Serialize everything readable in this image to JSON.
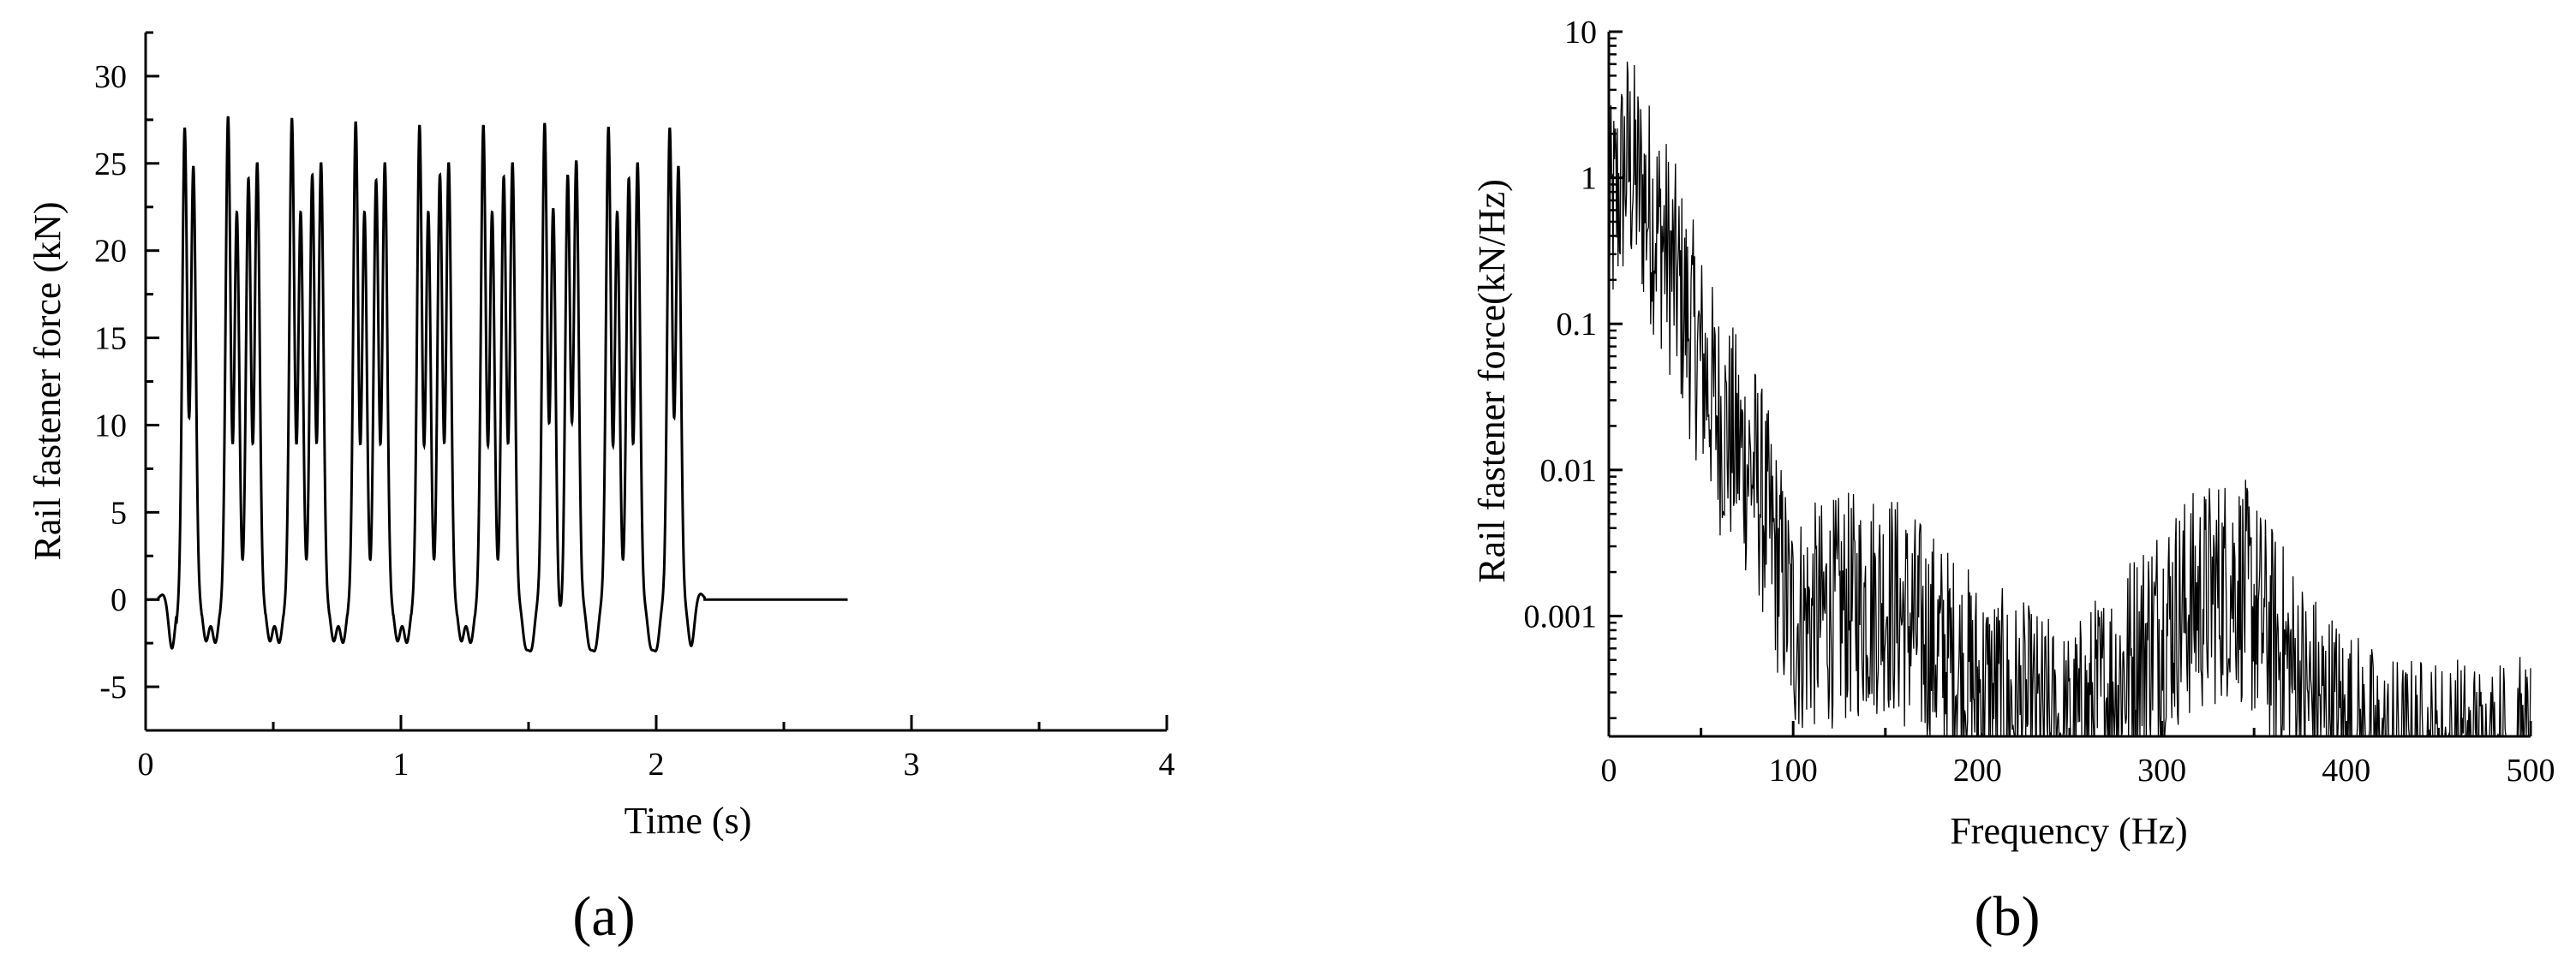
{
  "chart_data": [
    {
      "type": "line",
      "panel_label": "(a)",
      "xlabel": "Time (s)",
      "ylabel": "Rail fastener force (kN)",
      "xlim": [
        0,
        4
      ],
      "ylim": [
        -7.5,
        32.5
      ],
      "xticks": [
        "0",
        "1",
        "2",
        "3",
        "4"
      ],
      "yticks": [
        "-5",
        "0",
        "5",
        "10",
        "15",
        "20",
        "25",
        "30"
      ],
      "line_color": "#000000",
      "peaks_time_s": [
        0.17,
        0.34,
        0.42,
        0.59,
        0.67,
        0.84,
        0.92,
        1.09,
        1.17,
        1.34,
        1.42,
        1.58,
        1.67,
        1.83,
        1.91,
        2.07
      ],
      "peak_force_kN": [
        27.0,
        27.5,
        26.6,
        27.4,
        26.8,
        27.2,
        26.5,
        27.0,
        26.8,
        27.0,
        26.7,
        27.0,
        26.6,
        26.9,
        26.6,
        27.0
      ],
      "secondary_peak_kN": 24.8,
      "valley_between_kN": 13.5,
      "min_force_kN": -2.8,
      "end_time_s": 2.75
    },
    {
      "type": "line",
      "panel_label": "(b)",
      "xlabel": "Frequency (Hz)",
      "ylabel": "Rail fastener force(kN/Hz)",
      "xlim": [
        0,
        500
      ],
      "ylim": [
        0.00015,
        10
      ],
      "y_scale": "log",
      "xticks": [
        "0",
        "100",
        "200",
        "300",
        "400",
        "500"
      ],
      "yticks": [
        "0.001",
        "0.01",
        "0.1",
        "1",
        "10"
      ],
      "line_color": "#000000",
      "envelope": [
        {
          "f": 0,
          "amp": 1.0
        },
        {
          "f": 10,
          "amp": 3.0
        },
        {
          "f": 30,
          "amp": 0.8
        },
        {
          "f": 60,
          "amp": 0.05
        },
        {
          "f": 80,
          "amp": 0.02
        },
        {
          "f": 100,
          "amp": 0.002
        },
        {
          "f": 150,
          "amp": 0.003
        },
        {
          "f": 200,
          "amp": 0.0007
        },
        {
          "f": 250,
          "amp": 0.0003
        },
        {
          "f": 300,
          "amp": 0.002
        },
        {
          "f": 340,
          "amp": 0.004
        },
        {
          "f": 380,
          "amp": 0.0006
        },
        {
          "f": 420,
          "amp": 0.0002
        },
        {
          "f": 500,
          "amp": 0.0002
        }
      ]
    }
  ]
}
